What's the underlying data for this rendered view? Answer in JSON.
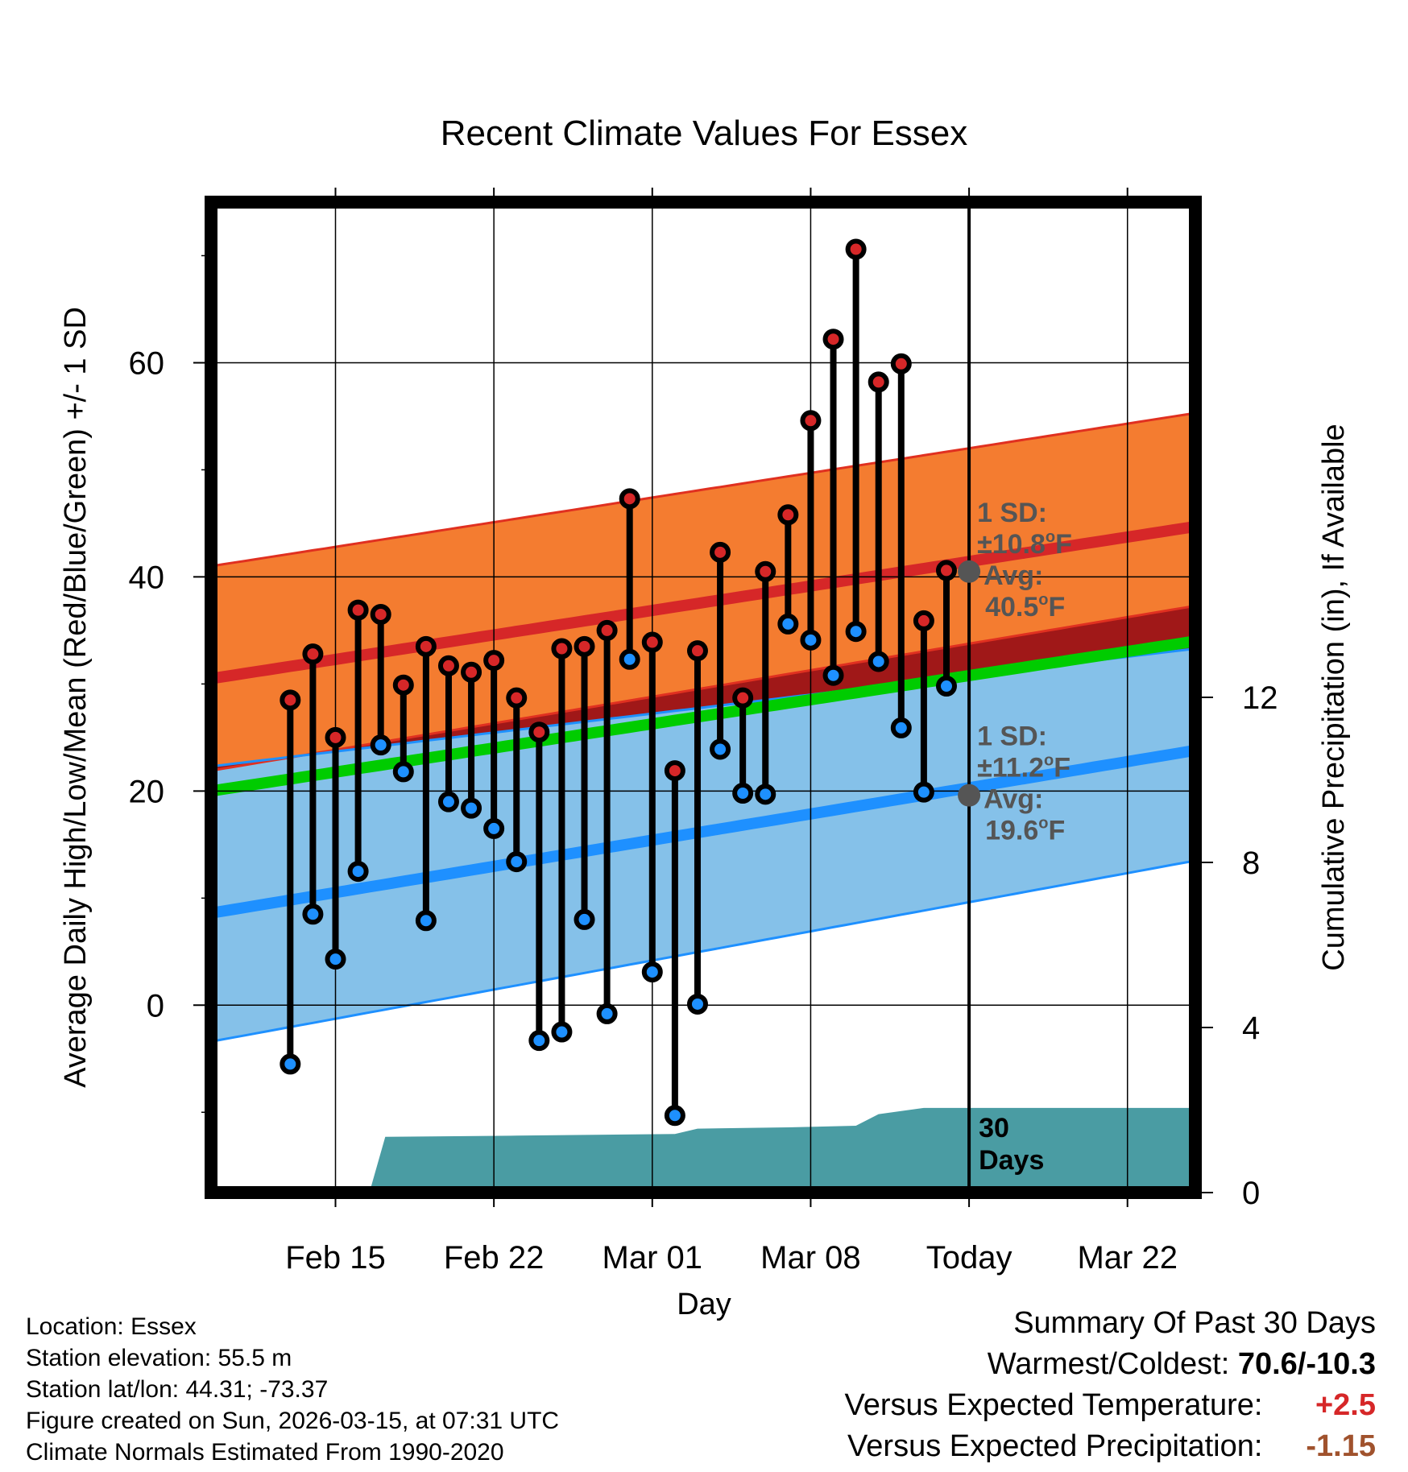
{
  "chart_data": {
    "type": "line",
    "title": "Recent Climate Values For Essex",
    "xlabel": "Day",
    "ylabel_left": "Average Daily High/Low/Mean (Red/Blue/Green) +/- 1 SD",
    "ylabel_right": "Cumulative Precipitation (in), If Available",
    "ylim_left": [
      -17.5,
      75
    ],
    "ylim_right": [
      0,
      24
    ],
    "xlim_days": [
      -33.5,
      10
    ],
    "left_ticks": [
      0,
      20,
      40,
      60
    ],
    "right_ticks": [
      0,
      4,
      8,
      12
    ],
    "x_ticks": [
      {
        "day": -28,
        "label": "Feb 15"
      },
      {
        "day": -21,
        "label": "Feb 22"
      },
      {
        "day": -14,
        "label": "Mar 01"
      },
      {
        "day": -7,
        "label": "Mar 08"
      },
      {
        "day": 0,
        "label": "Today"
      },
      {
        "day": 7,
        "label": "Mar 22"
      }
    ],
    "normals": {
      "high_mean": {
        "start": 30.5,
        "end": 44.7
      },
      "high_sd_upper": {
        "start": 41.0,
        "end": 55.3
      },
      "high_sd_lower": {
        "start": 21.9,
        "end": 37.3
      },
      "low_mean": {
        "start": 8.6,
        "end": 23.8
      },
      "low_sd_upper": {
        "start": 22.3,
        "end": 33.3
      },
      "low_sd_lower": {
        "start": -3.4,
        "end": 13.5
      },
      "daily_mean": {
        "start": 20.0,
        "end": 34.0
      }
    },
    "daily": [
      {
        "day": -30,
        "high": 28.5,
        "low": -5.5
      },
      {
        "day": -29,
        "high": 32.8,
        "low": 8.5
      },
      {
        "day": -28,
        "high": 25.0,
        "low": 4.3
      },
      {
        "day": -27,
        "high": 36.9,
        "low": 12.5
      },
      {
        "day": -26,
        "high": 36.5,
        "low": 24.3
      },
      {
        "day": -25,
        "high": 29.9,
        "low": 21.8
      },
      {
        "day": -24,
        "high": 33.5,
        "low": 7.9
      },
      {
        "day": -23,
        "high": 31.7,
        "low": 19.0
      },
      {
        "day": -22,
        "high": 31.1,
        "low": 18.4
      },
      {
        "day": -21,
        "high": 32.2,
        "low": 16.5
      },
      {
        "day": -20,
        "high": 28.7,
        "low": 13.4
      },
      {
        "day": -19,
        "high": 25.5,
        "low": -3.3
      },
      {
        "day": -18,
        "high": 33.3,
        "low": -2.5
      },
      {
        "day": -17,
        "high": 33.5,
        "low": 8.0
      },
      {
        "day": -16,
        "high": 35.0,
        "low": -0.8
      },
      {
        "day": -15,
        "high": 47.3,
        "low": 32.3
      },
      {
        "day": -14,
        "high": 33.9,
        "low": 3.1
      },
      {
        "day": -13,
        "high": 21.9,
        "low": -10.3
      },
      {
        "day": -12,
        "high": 33.1,
        "low": 0.1
      },
      {
        "day": -11,
        "high": 42.3,
        "low": 23.9
      },
      {
        "day": -10,
        "high": 28.7,
        "low": 19.8
      },
      {
        "day": -9,
        "high": 40.5,
        "low": 19.7
      },
      {
        "day": -8,
        "high": 45.8,
        "low": 35.6
      },
      {
        "day": -7,
        "high": 54.6,
        "low": 34.1
      },
      {
        "day": -6,
        "high": 62.2,
        "low": 30.8
      },
      {
        "day": -5,
        "high": 70.6,
        "low": 34.9
      },
      {
        "day": -4,
        "high": 58.2,
        "low": 32.1
      },
      {
        "day": -3,
        "high": 59.9,
        "low": 25.9
      },
      {
        "day": -2,
        "high": 35.9,
        "low": 19.9
      },
      {
        "day": -1,
        "high": 40.6,
        "low": 29.8
      }
    ],
    "precip_cumulative": [
      {
        "day": -26.5,
        "in": 0.0
      },
      {
        "day": -25.8,
        "in": 1.35
      },
      {
        "day": -20,
        "in": 1.38
      },
      {
        "day": -13,
        "in": 1.42
      },
      {
        "day": -12,
        "in": 1.55
      },
      {
        "day": -8,
        "in": 1.58
      },
      {
        "day": -5,
        "in": 1.62
      },
      {
        "day": -4,
        "in": 1.9
      },
      {
        "day": -2,
        "in": 2.05
      },
      {
        "day": 10,
        "in": 2.05
      }
    ],
    "annotations": {
      "high": {
        "line1": "1 SD:",
        "line2": "±10.8",
        "unit": "F",
        "line3": "Avg:",
        "line4": "40.5",
        "value": 40.5
      },
      "low": {
        "line1": "1 SD:",
        "line2": "±11.2",
        "unit": "F",
        "line3": "Avg:",
        "line4": "19.6",
        "value": 19.6
      },
      "degree_mark": "o",
      "days_line1": "30",
      "days_line2": "Days"
    },
    "colors": {
      "high_band": "#f47c30",
      "high_band_edge": "#e03020",
      "high_mean": "#d62728",
      "low_band": "#85c1e9",
      "low_band_edge": "#1e90ff",
      "low_mean": "#1e90ff",
      "daily_mean": "#00cc00",
      "overlap": "#a01818",
      "precip": "#4a9ca3",
      "high_marker": "#d62728",
      "low_marker": "#1e90ff"
    }
  },
  "info": {
    "location": "Location: Essex",
    "elevation": "Station elevation: 55.5 m",
    "latlon": "Station lat/lon: 44.31; -73.37",
    "created": "Figure created on Sun, 2026-03-15, at 07:31 UTC",
    "normals": "Climate Normals Estimated From 1990-2020"
  },
  "summary": {
    "title": "Summary Of Past 30 Days",
    "warmest_label": "Warmest/Coldest:",
    "warmest_value": "70.6/-10.3",
    "temp_label": "Versus Expected Temperature:",
    "temp_value": "+2.5",
    "precip_label": "Versus Expected Precipitation:",
    "precip_value": "-1.15"
  }
}
